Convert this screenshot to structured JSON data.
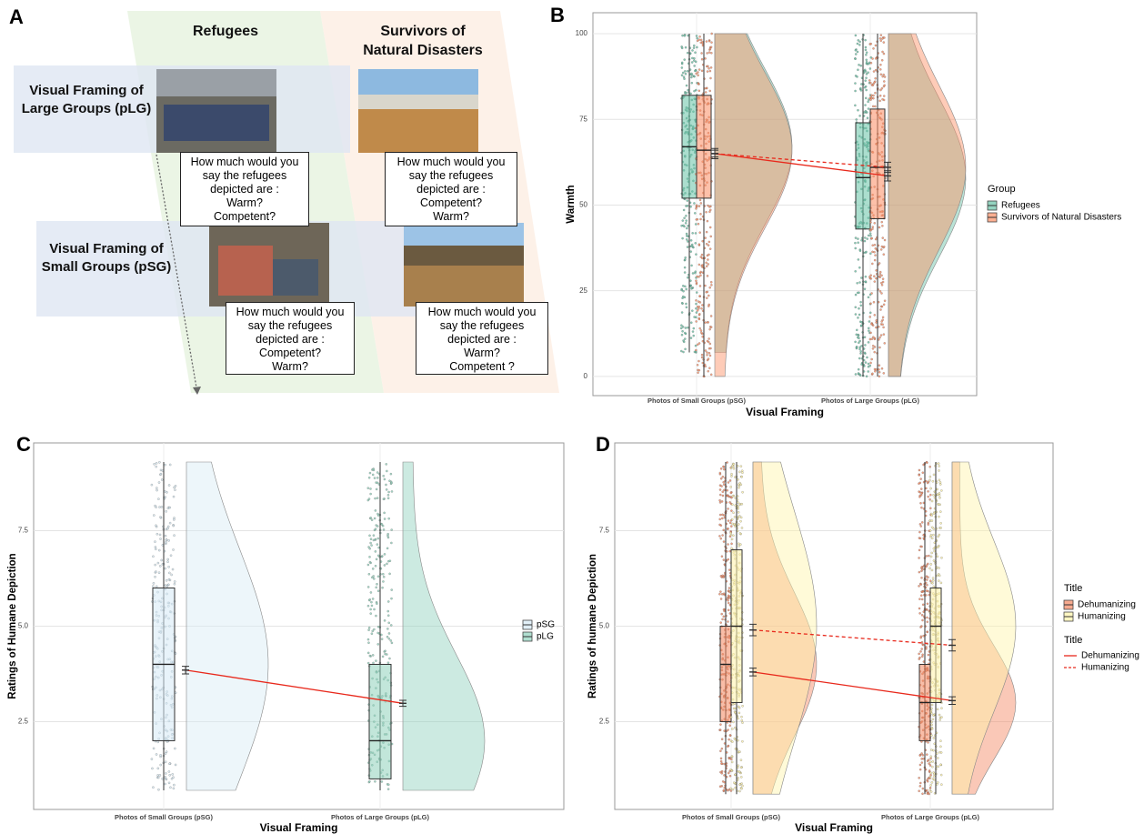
{
  "diagram": {
    "panel_label": "A",
    "columns": [
      "Refugees",
      "Survivors of Natural Disasters"
    ],
    "rows": [
      "Visual Framing of Large Groups (pLG)",
      "Visual Framing of Small Groups (pSG)"
    ],
    "questions": [
      [
        "How much would you",
        "say the refugees",
        "depicted are :",
        "Warm?",
        "Competent?"
      ],
      [
        "How much would you",
        "say the refugees",
        "depicted are :",
        "Competent?",
        "Warm?"
      ],
      [
        "How much would you",
        "say the refugees",
        "depicted are :",
        "Competent?",
        "Warm?"
      ],
      [
        "How much would you",
        "say the refugees",
        "depicted are :",
        "Warm?",
        "Competent ?"
      ]
    ]
  },
  "chart_data": [
    {
      "type": "raincloud",
      "panel_label": "B",
      "y_label": "Warmth",
      "x_label": "Visual Framing",
      "categories": [
        "Photos of Small Groups (pSG)",
        "Photos of Large Groups (pLG)"
      ],
      "ylim": [
        -5.6,
        106.1
      ],
      "yticks": [
        0,
        25,
        50,
        75,
        100
      ],
      "grid": true,
      "legend_title": "Group",
      "mean_line_color": "#e8291c",
      "series": [
        {
          "name": "Refugees",
          "color": "#66c2a5",
          "line_style": "solid",
          "q1": [
            52,
            43
          ],
          "median": [
            67,
            58
          ],
          "q3": [
            82,
            74
          ],
          "whisker_low": [
            7,
            0
          ],
          "whisker_high": [
            100,
            100
          ],
          "mean": [
            65,
            58.5
          ],
          "error": [
            1.5,
            1.5
          ]
        },
        {
          "name": "Survivors of Natural Disasters",
          "color": "#fc8d62",
          "line_style": "dashed",
          "q1": [
            52,
            46
          ],
          "median": [
            66,
            61
          ],
          "q3": [
            82,
            78
          ],
          "whisker_low": [
            0,
            0
          ],
          "whisker_high": [
            100,
            100
          ],
          "mean": [
            65,
            61
          ],
          "error": [
            1,
            1.5
          ]
        }
      ]
    },
    {
      "type": "raincloud",
      "panel_label": "C",
      "y_label": "Ratings of Humane Depiction",
      "x_label": "Visual Framing",
      "categories": [
        "Photos of Small Groups (pSG)",
        "Photos of Large Groups (pLG)"
      ],
      "ylim": [
        0.2,
        9.8
      ],
      "yticks": [
        {
          "value": 2.5,
          "label": "2.5"
        },
        {
          "value": 5,
          "label": "5.0"
        },
        {
          "value": 7.5,
          "label": "7.5"
        }
      ],
      "grid": true,
      "mean_line_color": "#e8291c",
      "series": [
        {
          "name": "pSG",
          "color": "#d6eaf5",
          "line_style": "solid",
          "q1": [
            2,
            null
          ],
          "median": [
            4,
            null
          ],
          "q3": [
            6,
            null
          ],
          "whisker_low": [
            0.7,
            null
          ],
          "whisker_high": [
            9.3,
            null
          ],
          "mean": [
            3.85,
            null
          ],
          "error": [
            0.1,
            null
          ]
        },
        {
          "name": "pLG",
          "color": "#8fd1bc",
          "line_style": "solid",
          "q1": [
            null,
            1
          ],
          "median": [
            null,
            2
          ],
          "q3": [
            null,
            4
          ],
          "whisker_low": [
            null,
            0.7
          ],
          "whisker_high": [
            null,
            9.3
          ],
          "mean": [
            null,
            2.98
          ],
          "error": [
            null,
            0.08
          ]
        }
      ]
    },
    {
      "type": "raincloud",
      "panel_label": "D",
      "y_label": "Ratings of humane Depiction",
      "x_label": "Visual Framing",
      "categories": [
        "Photos of Small Groups (pSG)",
        "Photos of Large Groups (pLG)"
      ],
      "ylim": [
        0.2,
        9.8
      ],
      "yticks": [
        {
          "value": 2.5,
          "label": "2.5"
        },
        {
          "value": 5,
          "label": "5.0"
        },
        {
          "value": 7.5,
          "label": "7.5"
        }
      ],
      "grid": true,
      "legend_title": "Title",
      "line_legend_title": "Title",
      "mean_line_color": "#e8291c",
      "series": [
        {
          "name": "Dehumanizing",
          "color": "#f4865f",
          "line_style": "solid",
          "q1": [
            2.5,
            2
          ],
          "median": [
            4,
            3
          ],
          "q3": [
            5,
            4
          ],
          "whisker_low": [
            0.6,
            0.6
          ],
          "whisker_high": [
            9.3,
            9.3
          ],
          "mean": [
            3.8,
            3.05
          ],
          "error": [
            0.1,
            0.1
          ]
        },
        {
          "name": "Humanizing",
          "color": "#fff3a8",
          "line_style": "dashed",
          "q1": [
            3,
            3
          ],
          "median": [
            5,
            5
          ],
          "q3": [
            7,
            6
          ],
          "whisker_low": [
            0.6,
            0.6
          ],
          "whisker_high": [
            9.3,
            9.3
          ],
          "mean": [
            4.9,
            4.5
          ],
          "error": [
            0.15,
            0.15
          ]
        }
      ]
    }
  ]
}
